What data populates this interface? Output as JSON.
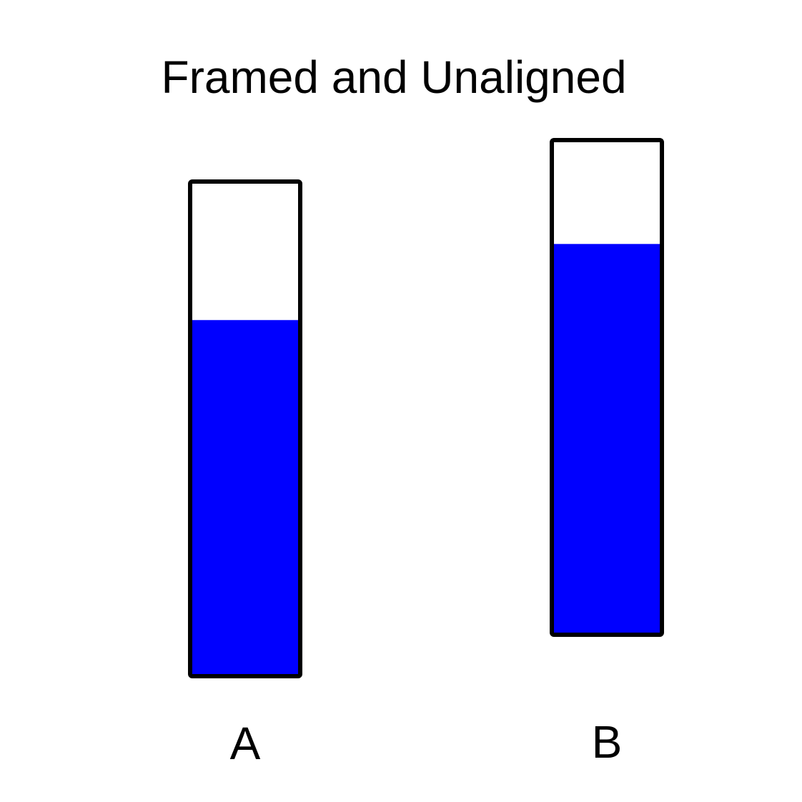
{
  "chart_data": {
    "type": "bar",
    "title": "Framed and Unaligned",
    "categories": [
      "A",
      "B"
    ],
    "values": [
      0.72,
      0.79
    ],
    "ylim": [
      0,
      1
    ],
    "xlabel": "",
    "ylabel": "",
    "grid": false,
    "bar_style": "framed",
    "colors": {
      "fill": "#0000ff",
      "frame": "#000000",
      "background": "#ffffff",
      "text": "#000000"
    }
  }
}
